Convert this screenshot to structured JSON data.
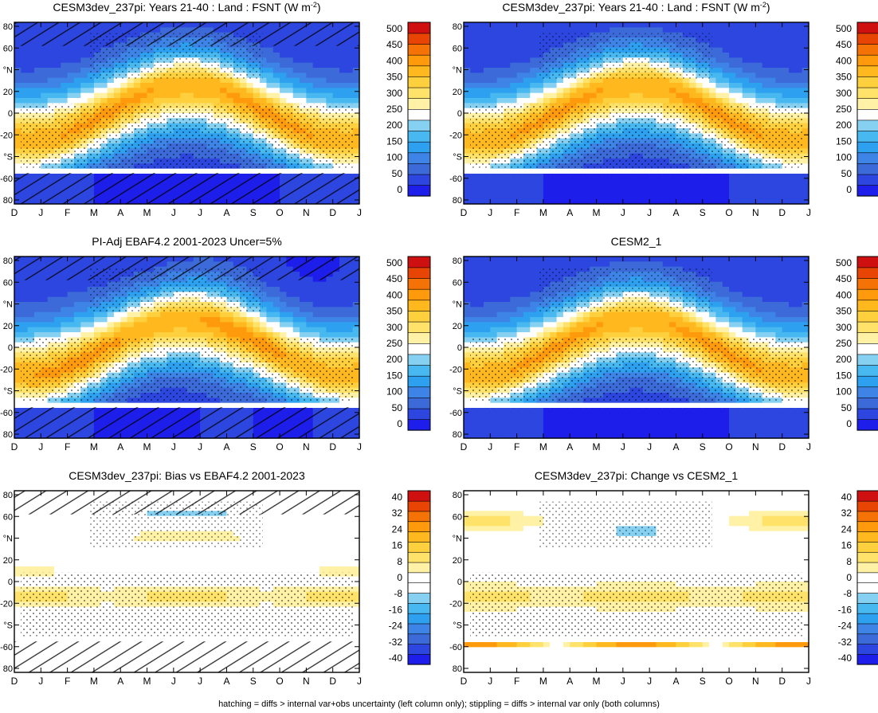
{
  "footer": "hatching = diffs > internal var+obs uncertainty (left column only); stippling = diffs > internal var only (both columns)",
  "colors": {
    "levels_full": [
      "#1e1eeb",
      "#2d46e0",
      "#3c6ad8",
      "#3e84e6",
      "#2ea0f0",
      "#47b8f0",
      "#86d0f2",
      "#ffffff",
      "#fff2a6",
      "#ffe26a",
      "#ffd03d",
      "#ffb81e",
      "#ff9a0c",
      "#f57306",
      "#e84404",
      "#cf1010"
    ],
    "levels_diff": [
      "#1e1eeb",
      "#2d46e0",
      "#3c6ad8",
      "#3e84e6",
      "#2ea0f0",
      "#47b8f0",
      "#86d0f2",
      "#ffffff",
      "#ffffff",
      "#fff2a6",
      "#ffe26a",
      "#ffd03d",
      "#ffb81e",
      "#ff9a0c",
      "#f57306",
      "#e84404",
      "#cf1010"
    ]
  },
  "chart_data": [
    {
      "type": "heatmap",
      "title": "CESM3dev_237pi: Years 21-40 : Land : FSNT (W m",
      "title_sup": "-2",
      "title_suffix": ")",
      "x_ticks": [
        "D",
        "J",
        "F",
        "M",
        "A",
        "M",
        "J",
        "J",
        "A",
        "S",
        "O",
        "N",
        "D",
        "J"
      ],
      "y_ticks": [
        "80",
        "60",
        "°N",
        "20",
        "0",
        "-20",
        "°S",
        "-60",
        "80"
      ],
      "ylim": [
        -90,
        90
      ],
      "colorbar": [
        "500",
        "450",
        "400",
        "350",
        "300",
        "250",
        "200",
        "150",
        "100",
        "50",
        "0"
      ],
      "scale": "full",
      "hatching": true,
      "stippling": true
    },
    {
      "type": "heatmap",
      "title": "CESM3dev_237pi: Years 21-40 : Land : FSNT (W m",
      "title_sup": "-2",
      "title_suffix": ")",
      "x_ticks": [
        "D",
        "J",
        "F",
        "M",
        "A",
        "M",
        "J",
        "J",
        "A",
        "S",
        "O",
        "N",
        "D",
        "J"
      ],
      "y_ticks": [
        "80",
        "60",
        "°N",
        "20",
        "0",
        "-20",
        "°S",
        "-60",
        "80"
      ],
      "ylim": [
        -90,
        90
      ],
      "colorbar": [
        "500",
        "450",
        "400",
        "350",
        "300",
        "250",
        "200",
        "150",
        "100",
        "50",
        "0"
      ],
      "scale": "full",
      "hatching": false,
      "stippling": true
    },
    {
      "type": "heatmap",
      "title": "PI-Adj EBAF4.2 2001-2023 Uncer=5%",
      "x_ticks": [
        "D",
        "J",
        "F",
        "M",
        "A",
        "M",
        "J",
        "J",
        "A",
        "S",
        "O",
        "N",
        "D",
        "J"
      ],
      "y_ticks": [
        "80",
        "60",
        "°N",
        "20",
        "0",
        "-20",
        "°S",
        "-60",
        "80"
      ],
      "ylim": [
        -90,
        90
      ],
      "colorbar": [
        "500",
        "450",
        "400",
        "350",
        "300",
        "250",
        "200",
        "150",
        "100",
        "50",
        "0"
      ],
      "scale": "full",
      "hatching": true,
      "stippling": true
    },
    {
      "type": "heatmap",
      "title": "CESM2_1",
      "x_ticks": [
        "D",
        "J",
        "F",
        "M",
        "A",
        "M",
        "J",
        "J",
        "A",
        "S",
        "O",
        "N",
        "D",
        "J"
      ],
      "y_ticks": [
        "80",
        "60",
        "°N",
        "20",
        "0",
        "-20",
        "°S",
        "-60",
        "80"
      ],
      "ylim": [
        -90,
        90
      ],
      "colorbar": [
        "500",
        "450",
        "400",
        "350",
        "300",
        "250",
        "200",
        "150",
        "100",
        "50",
        "0"
      ],
      "scale": "full",
      "hatching": false,
      "stippling": true
    },
    {
      "type": "heatmap",
      "title": "CESM3dev_237pi: Bias vs EBAF4.2 2001-2023",
      "x_ticks": [
        "D",
        "J",
        "F",
        "M",
        "A",
        "M",
        "J",
        "J",
        "A",
        "S",
        "O",
        "N",
        "D",
        "J"
      ],
      "y_ticks": [
        "80",
        "60",
        "°N",
        "20",
        "0",
        "-20",
        "°S",
        "-60",
        "80"
      ],
      "ylim": [
        -90,
        90
      ],
      "colorbar": [
        "40",
        "32",
        "24",
        "16",
        "8",
        "0",
        "-8",
        "-16",
        "-24",
        "-32",
        "-40"
      ],
      "scale": "diff",
      "hatching": true,
      "stippling": true
    },
    {
      "type": "heatmap",
      "title": "CESM3dev_237pi: Change vs CESM2_1",
      "x_ticks": [
        "D",
        "J",
        "F",
        "M",
        "A",
        "M",
        "J",
        "J",
        "A",
        "S",
        "O",
        "N",
        "D",
        "J"
      ],
      "y_ticks": [
        "80",
        "60",
        "°N",
        "20",
        "0",
        "-20",
        "°S",
        "-60",
        "80"
      ],
      "ylim": [
        -90,
        90
      ],
      "colorbar": [
        "40",
        "32",
        "24",
        "16",
        "8",
        "0",
        "-8",
        "-16",
        "-24",
        "-32",
        "-40"
      ],
      "scale": "diff",
      "hatching": false,
      "stippling": true
    }
  ]
}
